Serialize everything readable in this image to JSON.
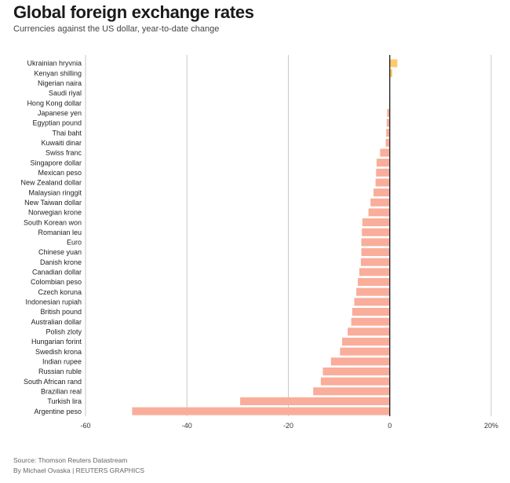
{
  "header": {
    "title": "Global foreign exchange rates",
    "subtitle": "Currencies against the US dollar, year-to-date change"
  },
  "footer": {
    "source": "Source: Thomson Reuters Datastream",
    "credit": "By Michael Ovaska | REUTERS GRAPHICS"
  },
  "chart_data": {
    "type": "bar",
    "orientation": "horizontal",
    "categories": [
      "Ukrainian hryvnia",
      "Kenyan shilling",
      "Nigerian naira",
      "Saudi riyal",
      "Hong Kong dollar",
      "Japanese yen",
      "Egyptian pound",
      "Thai baht",
      "Kuwaiti dinar",
      "Swiss franc",
      "Singapore dollar",
      "Mexican peso",
      "New Zealand dollar",
      "Malaysian ringgit",
      "New Taiwan dollar",
      "Norwegian krone",
      "South Korean won",
      "Romanian leu",
      "Euro",
      "Chinese yuan",
      "Danish krone",
      "Canadian dollar",
      "Colombian peso",
      "Czech koruna",
      "Indonesian rupiah",
      "British pound",
      "Australian dollar",
      "Polish zloty",
      "Hungarian forint",
      "Swedish krona",
      "Indian rupee",
      "Russian ruble",
      "South African rand",
      "Brazilian real",
      "Turkish lira",
      "Argentine peso"
    ],
    "values": [
      1.5,
      0.5,
      0.0,
      0.0,
      -0.1,
      -0.5,
      -0.6,
      -0.7,
      -0.8,
      -1.9,
      -2.6,
      -2.7,
      -2.8,
      -3.2,
      -3.8,
      -4.2,
      -5.4,
      -5.5,
      -5.6,
      -5.6,
      -5.7,
      -6.0,
      -6.3,
      -6.6,
      -7.0,
      -7.4,
      -7.6,
      -8.3,
      -9.4,
      -9.8,
      -11.6,
      -13.2,
      -13.6,
      -15.1,
      -29.5,
      -50.8
    ],
    "colors": {
      "positive": "#fccb6e",
      "negative": "#f9ad9a",
      "zero_line": "#1a1a1a",
      "grid": "#c8c8c8"
    },
    "xticks": [
      {
        "value": -60,
        "label": "-60"
      },
      {
        "value": -40,
        "label": "-40"
      },
      {
        "value": -20,
        "label": "-20"
      },
      {
        "value": 0,
        "label": "0"
      },
      {
        "value": 20,
        "label": "20%"
      }
    ],
    "xlim": [
      -60,
      20
    ],
    "grid": true,
    "title": "",
    "xlabel": "",
    "ylabel": ""
  }
}
